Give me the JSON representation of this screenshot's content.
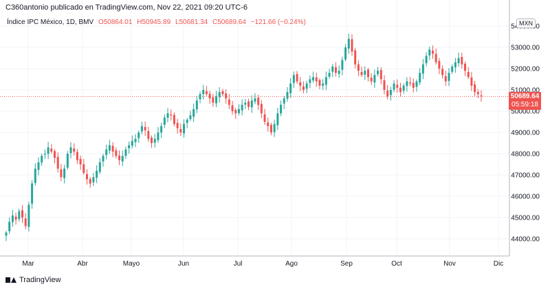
{
  "header": {
    "publisher": "C360antonio publicado en TradingView.com, Nov 22, 2021 09:20 UTC-6"
  },
  "legend": {
    "symbol": "Índice IPC México, 1D, BMV",
    "open": "O50864.01",
    "high": "H50945.89",
    "low": "L50681.34",
    "close": "C50689.64",
    "change": "−121.66 (−0.24%)"
  },
  "currency": "MXN",
  "last_price": {
    "value": "50689.64",
    "countdown": "05:59:18"
  },
  "footer": {
    "brand": "TradingView"
  },
  "colors": {
    "up": "#26a69a",
    "down": "#ef5350",
    "grid": "#f0f3fa",
    "axis_text": "#131722"
  },
  "chart_data": {
    "type": "candlestick",
    "title": "",
    "xlabel": "",
    "ylabel": "",
    "ylim": [
      43500,
      54500
    ],
    "ytick_labels": [
      "44000.00",
      "45000.00",
      "46000.00",
      "47000.00",
      "48000.00",
      "49000.00",
      "50000.00",
      "51000.00",
      "52000.00",
      "53000.00",
      "54000.00"
    ],
    "xtick_labels": [
      "Mar",
      "Abr",
      "Mayo",
      "Jun",
      "Jul",
      "Ago",
      "Sep",
      "Oct",
      "Nov",
      "Dic"
    ],
    "close_series": [
      44300,
      44800,
      45100,
      44900,
      45300,
      45000,
      44600,
      45600,
      46600,
      47300,
      47600,
      47900,
      48000,
      48300,
      48100,
      47800,
      47300,
      46900,
      47300,
      48000,
      48300,
      48100,
      47700,
      47500,
      47100,
      46800,
      46600,
      46900,
      47200,
      47600,
      47900,
      48200,
      48400,
      48100,
      47900,
      47700,
      47900,
      48200,
      48400,
      48600,
      48700,
      49000,
      49300,
      49100,
      48700,
      48500,
      48700,
      49000,
      49300,
      49700,
      49900,
      49800,
      49400,
      49200,
      49000,
      49400,
      49600,
      49800,
      50100,
      50500,
      50800,
      51000,
      50800,
      50600,
      50400,
      50700,
      50900,
      50800,
      50600,
      50300,
      50000,
      49900,
      50100,
      50300,
      50400,
      50200,
      50500,
      50600,
      50300,
      49900,
      49500,
      49300,
      49000,
      49400,
      49900,
      50300,
      50600,
      50900,
      51300,
      51700,
      51400,
      51200,
      51000,
      51300,
      51500,
      51600,
      51400,
      51200,
      51300,
      51600,
      51800,
      52100,
      51800,
      51900,
      52400,
      53000,
      53400,
      52800,
      52200,
      51900,
      51700,
      51900,
      51600,
      51400,
      51700,
      51900,
      51500,
      51000,
      50700,
      51000,
      51300,
      51100,
      50900,
      51200,
      51400,
      51300,
      51100,
      51400,
      51800,
      52200,
      52600,
      52900,
      52700,
      52300,
      52000,
      51700,
      51400,
      51800,
      52100,
      52300,
      52500,
      52200,
      51900,
      51600,
      51200,
      50900,
      50800,
      50700
    ],
    "last_value": 50689.64
  }
}
